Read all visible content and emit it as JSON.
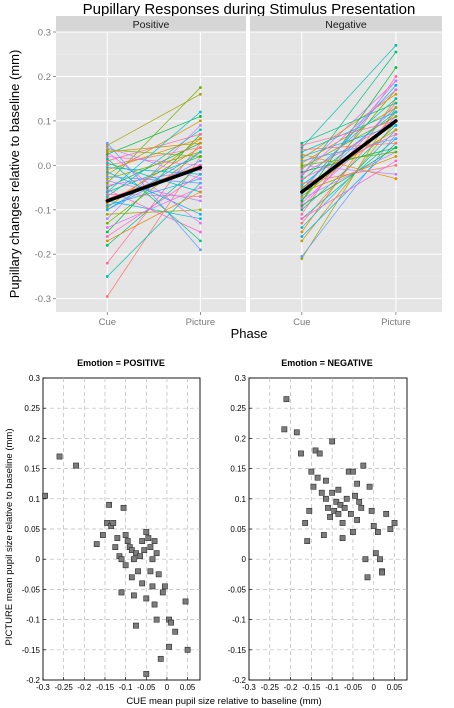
{
  "chart_data": [
    {
      "type": "line",
      "title": "Pupillary Responses during Stimulus Presentation",
      "xlabel": "Phase",
      "ylabel": "Pupillary changes relative to baseline (mm)",
      "categories": [
        "Cue",
        "Picture"
      ],
      "ylim": [
        -0.33,
        0.3
      ],
      "yticks": [
        "-0.3",
        "-0.2",
        "-0.1",
        "0.0",
        "0.1",
        "0.2",
        "0.3"
      ],
      "ytick_values": [
        -0.3,
        -0.2,
        -0.1,
        0.0,
        0.1,
        0.2,
        0.3
      ],
      "grid": true,
      "panels": [
        {
          "label": "Positive",
          "mean": [
            -0.08,
            -0.005
          ],
          "subjects": [
            [
              -0.295,
              0.02
            ],
            [
              -0.25,
              -0.04
            ],
            [
              -0.22,
              0.05
            ],
            [
              -0.18,
              0.0
            ],
            [
              -0.16,
              -0.02
            ],
            [
              -0.15,
              0.07
            ],
            [
              -0.14,
              -0.05
            ],
            [
              -0.13,
              0.03
            ],
            [
              -0.12,
              0.09
            ],
            [
              -0.11,
              -0.1
            ],
            [
              -0.1,
              0.01
            ],
            [
              -0.095,
              0.06
            ],
            [
              -0.09,
              -0.03
            ],
            [
              -0.085,
              0.04
            ],
            [
              -0.08,
              -0.12
            ],
            [
              -0.075,
              0.0
            ],
            [
              -0.07,
              0.08
            ],
            [
              -0.065,
              -0.07
            ],
            [
              -0.06,
              0.02
            ],
            [
              -0.055,
              -0.15
            ],
            [
              -0.05,
              0.05
            ],
            [
              -0.045,
              -0.01
            ],
            [
              -0.04,
              0.175
            ],
            [
              -0.035,
              -0.08
            ],
            [
              -0.03,
              0.03
            ],
            [
              -0.025,
              -0.04
            ],
            [
              -0.02,
              0.1
            ],
            [
              -0.015,
              -0.11
            ],
            [
              -0.01,
              0.06
            ],
            [
              -0.005,
              -0.02
            ],
            [
              0.0,
              0.04
            ],
            [
              0.005,
              -0.06
            ],
            [
              0.01,
              0.07
            ],
            [
              0.015,
              -0.17
            ],
            [
              0.02,
              0.0
            ],
            [
              0.025,
              0.11
            ],
            [
              0.03,
              -0.13
            ],
            [
              0.035,
              0.02
            ],
            [
              0.04,
              -0.03
            ],
            [
              0.045,
              0.16
            ],
            [
              0.05,
              -0.19
            ],
            [
              0.03,
              0.05
            ],
            [
              -0.1,
              0.03
            ],
            [
              -0.17,
              -0.06
            ],
            [
              -0.06,
              0.12
            ]
          ]
        },
        {
          "label": "Negative",
          "mean": [
            -0.06,
            0.1
          ],
          "subjects": [
            [
              -0.21,
              0.13
            ],
            [
              -0.205,
              0.07
            ],
            [
              -0.17,
              0.1
            ],
            [
              -0.16,
              0.05
            ],
            [
              -0.15,
              0.15
            ],
            [
              -0.14,
              0.08
            ],
            [
              -0.13,
              0.12
            ],
            [
              -0.12,
              0.06
            ],
            [
              -0.11,
              0.2
            ],
            [
              -0.1,
              0.09
            ],
            [
              -0.095,
              0.14
            ],
            [
              -0.09,
              0.04
            ],
            [
              -0.085,
              0.11
            ],
            [
              -0.08,
              0.17
            ],
            [
              -0.075,
              0.03
            ],
            [
              -0.07,
              0.1
            ],
            [
              -0.065,
              0.13
            ],
            [
              -0.06,
              0.02
            ],
            [
              -0.055,
              0.18
            ],
            [
              -0.05,
              0.08
            ],
            [
              -0.045,
              0.12
            ],
            [
              -0.04,
              0.0
            ],
            [
              -0.035,
              0.15
            ],
            [
              -0.03,
              0.07
            ],
            [
              -0.025,
              0.255
            ],
            [
              -0.02,
              0.1
            ],
            [
              -0.015,
              0.04
            ],
            [
              -0.01,
              0.19
            ],
            [
              -0.005,
              0.11
            ],
            [
              0.0,
              -0.02
            ],
            [
              0.005,
              0.13
            ],
            [
              0.01,
              0.06
            ],
            [
              0.015,
              0.16
            ],
            [
              0.02,
              0.09
            ],
            [
              0.025,
              -0.03
            ],
            [
              0.03,
              0.12
            ],
            [
              0.035,
              0.05
            ],
            [
              0.04,
              0.27
            ],
            [
              0.045,
              0.1
            ],
            [
              0.05,
              0.14
            ],
            [
              -0.12,
              0.01
            ],
            [
              -0.08,
              0.22
            ],
            [
              -0.02,
              0.17
            ],
            [
              0.0,
              0.03
            ],
            [
              -0.06,
              0.19
            ]
          ]
        }
      ]
    },
    {
      "type": "scatter",
      "title": "Emotion = POSITIVE",
      "xlabel": "CUE mean pupil size relative to baseline (mm)",
      "ylabel": "PICTURE mean pupil size relative to baseline (mm)",
      "xlim": [
        -0.3,
        0.08
      ],
      "ylim": [
        -0.2,
        0.3
      ],
      "xticks": [
        "-0.3",
        "-0.25",
        "-0.2",
        "-0.15",
        "-0.1",
        "-0.05",
        "0",
        "0.05"
      ],
      "xtick_values": [
        -0.3,
        -0.25,
        -0.2,
        -0.15,
        -0.1,
        -0.05,
        0,
        0.05
      ],
      "yticks": [
        "-0.2",
        "-0.15",
        "-0.1",
        "-0.05",
        "0",
        "0.05",
        "0.1",
        "0.15",
        "0.2",
        "0.25",
        "0.3"
      ],
      "ytick_values": [
        -0.2,
        -0.15,
        -0.1,
        -0.05,
        0,
        0.05,
        0.1,
        0.15,
        0.2,
        0.25,
        0.3
      ],
      "grid": true,
      "points": [
        [
          -0.295,
          0.105
        ],
        [
          -0.26,
          0.17
        ],
        [
          -0.22,
          0.155
        ],
        [
          -0.17,
          0.025
        ],
        [
          -0.155,
          0.04
        ],
        [
          -0.145,
          0.06
        ],
        [
          -0.14,
          0.09
        ],
        [
          -0.135,
          0.055
        ],
        [
          -0.13,
          0.06
        ],
        [
          -0.125,
          0.02
        ],
        [
          -0.12,
          0.035
        ],
        [
          -0.115,
          0.005
        ],
        [
          -0.11,
          -0.055
        ],
        [
          -0.11,
          0.0
        ],
        [
          -0.105,
          0.085
        ],
        [
          -0.1,
          -0.01
        ],
        [
          -0.1,
          0.04
        ],
        [
          -0.095,
          0.03
        ],
        [
          -0.09,
          0.02
        ],
        [
          -0.085,
          0.015
        ],
        [
          -0.085,
          -0.03
        ],
        [
          -0.08,
          0.0
        ],
        [
          -0.08,
          -0.06
        ],
        [
          -0.075,
          0.01
        ],
        [
          -0.075,
          -0.11
        ],
        [
          -0.07,
          -0.02
        ],
        [
          -0.065,
          0.005
        ],
        [
          -0.06,
          0.03
        ],
        [
          -0.06,
          -0.04
        ],
        [
          -0.055,
          0.015
        ],
        [
          -0.05,
          0.045
        ],
        [
          -0.05,
          -0.065
        ],
        [
          -0.045,
          0.035
        ],
        [
          -0.04,
          0.02
        ],
        [
          -0.04,
          -0.02
        ],
        [
          -0.035,
          0.0
        ],
        [
          -0.035,
          -0.045
        ],
        [
          -0.03,
          0.03
        ],
        [
          -0.03,
          -0.075
        ],
        [
          -0.025,
          0.01
        ],
        [
          -0.025,
          -0.1
        ],
        [
          -0.02,
          -0.025
        ],
        [
          -0.015,
          -0.165
        ],
        [
          -0.05,
          -0.19
        ],
        [
          -0.01,
          -0.055
        ],
        [
          0.005,
          -0.1
        ],
        [
          0.005,
          -0.145
        ],
        [
          0.01,
          -0.105
        ],
        [
          0.02,
          -0.12
        ],
        [
          0.045,
          -0.07
        ],
        [
          0.05,
          -0.15
        ],
        [
          -0.005,
          -0.045
        ]
      ]
    },
    {
      "type": "scatter",
      "title": "Emotion = NEGATIVE",
      "xlabel": "CUE mean pupil size relative to baseline (mm)",
      "ylabel": "PICTURE mean pupil size relative to baseline (mm)",
      "xlim": [
        -0.3,
        0.08
      ],
      "ylim": [
        -0.2,
        0.3
      ],
      "xticks": [
        "-0.3",
        "-0.25",
        "-0.2",
        "-0.15",
        "-0.1",
        "-0.05",
        "0",
        "0.05"
      ],
      "xtick_values": [
        -0.3,
        -0.25,
        -0.2,
        -0.15,
        -0.1,
        -0.05,
        0,
        0.05
      ],
      "yticks": [
        "-0.2",
        "-0.15",
        "-0.1",
        "-0.05",
        "0",
        "0.05",
        "0.1",
        "0.15",
        "0.2",
        "0.25",
        "0.3"
      ],
      "ytick_values": [
        -0.2,
        -0.15,
        -0.1,
        -0.05,
        0,
        0.05,
        0.1,
        0.15,
        0.2,
        0.25,
        0.3
      ],
      "grid": true,
      "points": [
        [
          -0.21,
          0.265
        ],
        [
          -0.215,
          0.215
        ],
        [
          -0.185,
          0.21
        ],
        [
          -0.175,
          0.175
        ],
        [
          -0.165,
          0.06
        ],
        [
          -0.16,
          0.03
        ],
        [
          -0.155,
          0.08
        ],
        [
          -0.15,
          0.145
        ],
        [
          -0.145,
          0.12
        ],
        [
          -0.14,
          0.18
        ],
        [
          -0.135,
          0.135
        ],
        [
          -0.13,
          0.175
        ],
        [
          -0.125,
          0.11
        ],
        [
          -0.12,
          0.04
        ],
        [
          -0.115,
          0.1
        ],
        [
          -0.115,
          0.13
        ],
        [
          -0.11,
          0.085
        ],
        [
          -0.105,
          0.07
        ],
        [
          -0.1,
          0.195
        ],
        [
          -0.1,
          0.11
        ],
        [
          -0.095,
          0.08
        ],
        [
          -0.09,
          0.095
        ],
        [
          -0.085,
          0.115
        ],
        [
          -0.085,
          0.075
        ],
        [
          -0.08,
          0.09
        ],
        [
          -0.075,
          0.06
        ],
        [
          -0.075,
          0.035
        ],
        [
          -0.07,
          0.085
        ],
        [
          -0.065,
          0.1
        ],
        [
          -0.06,
          0.145
        ],
        [
          -0.055,
          0.075
        ],
        [
          -0.05,
          0.145
        ],
        [
          -0.05,
          0.045
        ],
        [
          -0.045,
          0.105
        ],
        [
          -0.04,
          0.125
        ],
        [
          -0.04,
          0.065
        ],
        [
          -0.035,
          0.095
        ],
        [
          -0.03,
          0.085
        ],
        [
          -0.025,
          0.155
        ],
        [
          -0.02,
          0.0
        ],
        [
          -0.015,
          -0.03
        ],
        [
          -0.01,
          0.12
        ],
        [
          -0.005,
          0.08
        ],
        [
          0.0,
          0.055
        ],
        [
          0.005,
          0.01
        ],
        [
          0.01,
          0.045
        ],
        [
          0.015,
          0.0
        ],
        [
          0.02,
          -0.02
        ],
        [
          0.02,
          -0.022
        ],
        [
          0.03,
          0.075
        ],
        [
          0.04,
          0.05
        ],
        [
          0.05,
          0.06
        ]
      ]
    }
  ]
}
